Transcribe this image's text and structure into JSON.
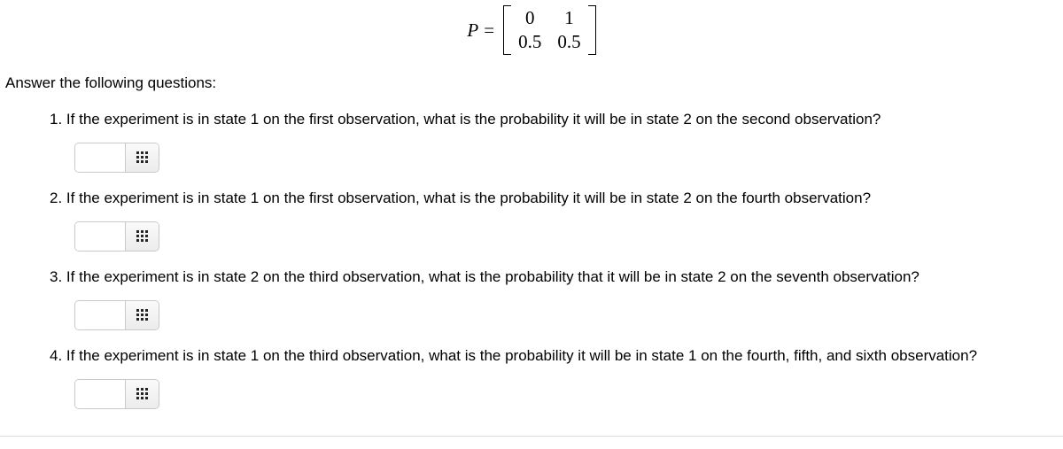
{
  "matrix": {
    "label": "P",
    "equals": "=",
    "cells": [
      [
        "0",
        "1"
      ],
      [
        "0.5",
        "0.5"
      ]
    ]
  },
  "intro": "Answer the following questions:",
  "questions": [
    {
      "num": "1.",
      "text": "If the experiment is in state 1 on the first observation, what is the probability it will be in state 2 on the second observation?",
      "value": ""
    },
    {
      "num": "2.",
      "text": "If the experiment is in state 1 on the first observation, what is the probability it will be in state 2 on the fourth observation?",
      "value": ""
    },
    {
      "num": "3.",
      "text": "If the experiment is in state 2 on the third observation, what is the probability that it will be in state 2 on the seventh observation?",
      "value": ""
    },
    {
      "num": "4.",
      "text": "If the experiment is in state 1 on the third observation, what is the probability it will be in state 1 on the fourth, fifth, and sixth observation?",
      "value": ""
    }
  ],
  "icons": {
    "keypad": "keypad-icon"
  }
}
